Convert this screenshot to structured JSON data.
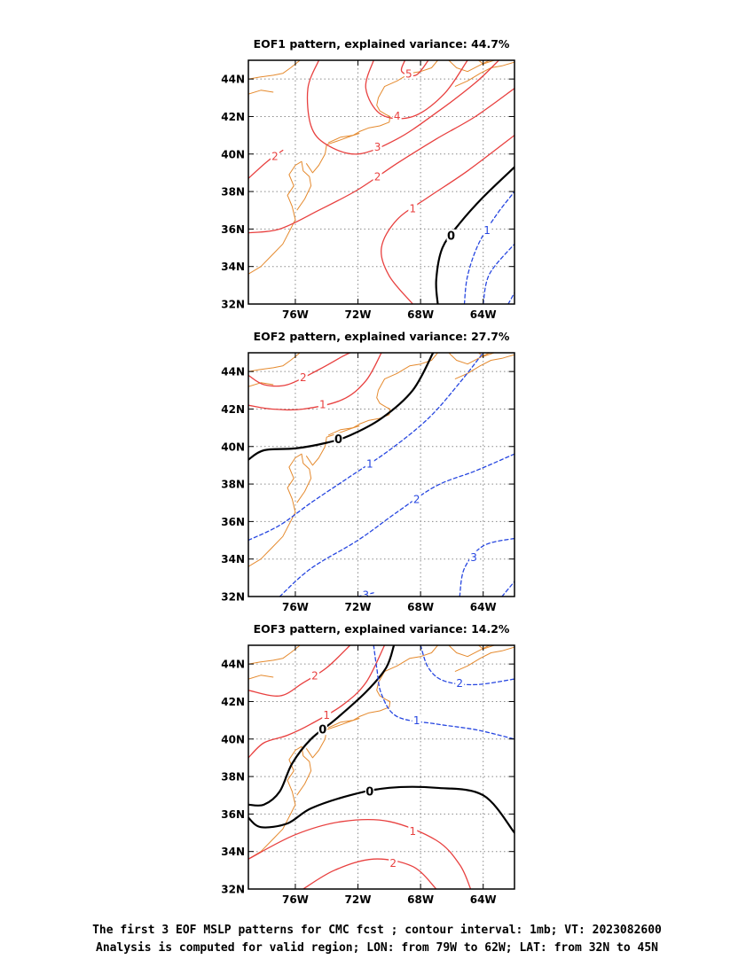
{
  "chart_data": [
    {
      "type": "contour",
      "title": "EOF1 pattern, explained variance: 44.7%",
      "x_ticks": [
        "76W",
        "72W",
        "68W",
        "64W"
      ],
      "y_ticks": [
        "32N",
        "34N",
        "36N",
        "38N",
        "40N",
        "42N",
        "44N"
      ],
      "xlim": [
        -79,
        -62
      ],
      "ylim": [
        32,
        45
      ],
      "grid": true,
      "contour_interval": 1,
      "contours": [
        {
          "value": 0,
          "label": "0",
          "points": [
            [
              -66.9,
              32.0
            ],
            [
              -67.0,
              33.3
            ],
            [
              -66.6,
              35.0
            ],
            [
              -65.5,
              36.3
            ],
            [
              -64.0,
              37.7
            ],
            [
              -62.0,
              39.3
            ]
          ]
        },
        {
          "value": 1,
          "label": "1",
          "points": [
            [
              -68.5,
              32.0
            ],
            [
              -70.0,
              33.5
            ],
            [
              -70.5,
              35.0
            ],
            [
              -69.5,
              36.5
            ],
            [
              -67.5,
              37.7
            ],
            [
              -65.0,
              39.1
            ],
            [
              -62.0,
              41.0
            ]
          ]
        },
        {
          "value": 2,
          "label": "2",
          "points": [
            [
              -79.0,
              35.8
            ],
            [
              -77.0,
              36.0
            ],
            [
              -74.5,
              37.0
            ],
            [
              -72.0,
              38.1
            ],
            [
              -69.5,
              39.5
            ],
            [
              -67.0,
              40.8
            ],
            [
              -64.5,
              42.0
            ],
            [
              -62.0,
              43.5
            ]
          ]
        },
        {
          "value": 2,
          "label": "2",
          "points": [
            [
              -79.0,
              38.7
            ],
            [
              -77.8,
              39.6
            ],
            [
              -76.8,
              40.2
            ]
          ]
        },
        {
          "value": 3,
          "label": "3",
          "points": [
            [
              -74.5,
              45.0
            ],
            [
              -75.2,
              43.5
            ],
            [
              -75.0,
              41.5
            ],
            [
              -74.0,
              40.5
            ],
            [
              -72.0,
              40.0
            ],
            [
              -69.5,
              40.8
            ],
            [
              -67.0,
              42.2
            ],
            [
              -64.5,
              43.8
            ],
            [
              -63.0,
              45.0
            ]
          ]
        },
        {
          "value": 4,
          "label": "4",
          "points": [
            [
              -71.0,
              45.0
            ],
            [
              -71.5,
              43.5
            ],
            [
              -70.5,
              42.1
            ],
            [
              -68.5,
              42.0
            ],
            [
              -66.5,
              43.2
            ],
            [
              -65.0,
              45.0
            ]
          ]
        },
        {
          "value": 5,
          "label": "5",
          "points": [
            [
              -69.0,
              45.0
            ],
            [
              -69.2,
              44.4
            ],
            [
              -68.3,
              44.2
            ],
            [
              -67.5,
              45.0
            ]
          ]
        },
        {
          "value": -1,
          "label": "1",
          "points": [
            [
              -65.2,
              32.0
            ],
            [
              -65.0,
              33.5
            ],
            [
              -64.3,
              35.2
            ],
            [
              -63.2,
              36.7
            ],
            [
              -62.0,
              38.0
            ]
          ]
        },
        {
          "value": -2,
          "label": "",
          "points": [
            [
              -64.0,
              32.0
            ],
            [
              -63.6,
              33.6
            ],
            [
              -62.0,
              35.2
            ]
          ]
        },
        {
          "value": -3,
          "label": "",
          "points": [
            [
              -62.4,
              32.0
            ],
            [
              -62.0,
              32.6
            ]
          ]
        }
      ]
    },
    {
      "type": "contour",
      "title": "EOF2 pattern, explained variance: 27.7%",
      "x_ticks": [
        "76W",
        "72W",
        "68W",
        "64W"
      ],
      "y_ticks": [
        "32N",
        "34N",
        "36N",
        "38N",
        "40N",
        "42N",
        "44N"
      ],
      "xlim": [
        -79,
        -62
      ],
      "ylim": [
        32,
        45
      ],
      "grid": true,
      "contour_interval": 1,
      "contours": [
        {
          "value": 0,
          "label": "0",
          "points": [
            [
              -79.0,
              39.3
            ],
            [
              -78.0,
              39.8
            ],
            [
              -76.0,
              39.9
            ],
            [
              -74.0,
              40.2
            ],
            [
              -72.5,
              40.6
            ],
            [
              -70.5,
              41.5
            ],
            [
              -68.5,
              43.0
            ],
            [
              -67.2,
              45.0
            ]
          ]
        },
        {
          "value": 1,
          "label": "1",
          "points": [
            [
              -79.0,
              42.2
            ],
            [
              -77.5,
              42.0
            ],
            [
              -75.5,
              42.0
            ],
            [
              -73.0,
              42.5
            ],
            [
              -71.5,
              43.5
            ],
            [
              -70.5,
              45.0
            ]
          ]
        },
        {
          "value": 2,
          "label": "2",
          "points": [
            [
              -79.0,
              43.8
            ],
            [
              -78.0,
              43.3
            ],
            [
              -76.5,
              43.3
            ],
            [
              -74.5,
              44.1
            ],
            [
              -73.0,
              44.8
            ],
            [
              -72.5,
              45.0
            ]
          ]
        },
        {
          "value": -1,
          "label": "1",
          "points": [
            [
              -79.0,
              35.0
            ],
            [
              -77.0,
              35.8
            ],
            [
              -75.0,
              37.0
            ],
            [
              -72.5,
              38.4
            ],
            [
              -70.0,
              39.8
            ],
            [
              -67.5,
              41.5
            ],
            [
              -65.5,
              43.4
            ],
            [
              -64.0,
              45.0
            ]
          ]
        },
        {
          "value": -2,
          "label": "2",
          "points": [
            [
              -77.0,
              32.0
            ],
            [
              -75.0,
              33.5
            ],
            [
              -72.0,
              35.0
            ],
            [
              -69.5,
              36.5
            ],
            [
              -67.0,
              37.9
            ],
            [
              -64.5,
              38.7
            ],
            [
              -62.0,
              39.6
            ]
          ]
        },
        {
          "value": -3,
          "label": "3",
          "points": [
            [
              -72.0,
              32.0
            ],
            [
              -71.0,
              32.2
            ]
          ]
        },
        {
          "value": -3,
          "label": "3",
          "points": [
            [
              -65.5,
              32.0
            ],
            [
              -65.2,
              33.5
            ],
            [
              -64.0,
              34.7
            ],
            [
              -62.0,
              35.1
            ]
          ]
        },
        {
          "value": -4,
          "label": "",
          "points": [
            [
              -62.8,
              32.0
            ],
            [
              -62.0,
              32.8
            ]
          ]
        }
      ]
    },
    {
      "type": "contour",
      "title": "EOF3 pattern, explained variance: 14.2%",
      "x_ticks": [
        "76W",
        "72W",
        "68W",
        "64W"
      ],
      "y_ticks": [
        "32N",
        "34N",
        "36N",
        "38N",
        "40N",
        "42N",
        "44N"
      ],
      "xlim": [
        -79,
        -62
      ],
      "ylim": [
        32,
        45
      ],
      "grid": true,
      "contour_interval": 1,
      "contours": [
        {
          "value": 0,
          "label": "0",
          "points": [
            [
              -79.0,
              36.5
            ],
            [
              -78.0,
              36.5
            ],
            [
              -77.0,
              37.2
            ],
            [
              -76.2,
              38.7
            ],
            [
              -75.0,
              40.0
            ],
            [
              -73.5,
              41.0
            ],
            [
              -71.5,
              42.5
            ],
            [
              -70.2,
              43.8
            ],
            [
              -69.7,
              45.0
            ]
          ]
        },
        {
          "value": 0,
          "label": "0",
          "points": [
            [
              -79.0,
              35.8
            ],
            [
              -78.2,
              35.3
            ],
            [
              -76.5,
              35.5
            ],
            [
              -75.0,
              36.3
            ],
            [
              -72.5,
              37.0
            ],
            [
              -70.0,
              37.4
            ],
            [
              -67.0,
              37.4
            ],
            [
              -64.0,
              37.0
            ],
            [
              -62.0,
              35.0
            ]
          ]
        },
        {
          "value": 1,
          "label": "1",
          "points": [
            [
              -79.0,
              39.0
            ],
            [
              -78.0,
              39.8
            ],
            [
              -76.5,
              40.2
            ],
            [
              -75.0,
              40.8
            ],
            [
              -73.0,
              41.8
            ],
            [
              -71.5,
              43.0
            ],
            [
              -70.3,
              45.0
            ]
          ]
        },
        {
          "value": 2,
          "label": "2",
          "points": [
            [
              -79.0,
              42.6
            ],
            [
              -77.0,
              42.3
            ],
            [
              -75.5,
              43.0
            ],
            [
              -74.0,
              43.8
            ],
            [
              -72.5,
              45.0
            ]
          ]
        },
        {
          "value": 1,
          "label": "1",
          "points": [
            [
              -79.0,
              33.6
            ],
            [
              -76.0,
              34.9
            ],
            [
              -73.0,
              35.6
            ],
            [
              -70.0,
              35.6
            ],
            [
              -67.0,
              34.6
            ],
            [
              -65.5,
              33.3
            ],
            [
              -64.8,
              32.0
            ]
          ]
        },
        {
          "value": 2,
          "label": "2",
          "points": [
            [
              -75.5,
              32.0
            ],
            [
              -73.5,
              33.0
            ],
            [
              -71.0,
              33.6
            ],
            [
              -68.5,
              33.2
            ],
            [
              -67.0,
              32.0
            ]
          ]
        },
        {
          "value": -1,
          "label": "1",
          "points": [
            [
              -71.0,
              45.0
            ],
            [
              -70.8,
              43.8
            ],
            [
              -70.5,
              42.4
            ],
            [
              -69.5,
              41.2
            ],
            [
              -67.0,
              40.8
            ],
            [
              -64.5,
              40.5
            ],
            [
              -62.0,
              40.0
            ]
          ]
        },
        {
          "value": -2,
          "label": "2",
          "points": [
            [
              -68.0,
              45.0
            ],
            [
              -67.5,
              43.8
            ],
            [
              -66.5,
              43.1
            ],
            [
              -64.5,
              42.9
            ],
            [
              -62.0,
              43.2
            ]
          ]
        }
      ]
    }
  ],
  "footer": {
    "line1": "The first 3 EOF MSLP patterns for CMC fcst ; contour interval: 1mb; VT: 2023082600",
    "line2": "Analysis is computed for valid region; LON: from 79W to 62W; LAT: from 32N to 45N"
  },
  "colors": {
    "positive": "#e8403f",
    "negative": "#2646e0",
    "zero": "#000000",
    "coast": "#e58a2e",
    "grid": "#8a8a8a"
  }
}
